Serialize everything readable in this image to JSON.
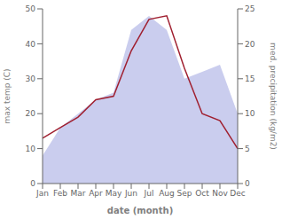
{
  "chart_data": {
    "type": "line",
    "categories": [
      "Jan",
      "Feb",
      "Mar",
      "Apr",
      "May",
      "Jun",
      "Jul",
      "Aug",
      "Sep",
      "Oct",
      "Nov",
      "Dec"
    ],
    "xlabel": "date (month)",
    "ylabel": "max temp (C)",
    "y2label": "med. precipitation (kg/m2)",
    "ylim": [
      0,
      50
    ],
    "yticks": [
      0,
      10,
      20,
      30,
      40,
      50
    ],
    "y2lim": [
      0,
      25
    ],
    "y2ticks": [
      0,
      5,
      10,
      15,
      20,
      25
    ],
    "grid": false,
    "series": [
      {
        "type": "area",
        "color": "#b8bce8",
        "axis": "y2",
        "values": [
          4,
          8,
          10,
          12,
          13,
          22,
          24,
          22,
          15,
          16,
          17,
          10
        ]
      },
      {
        "type": "line",
        "color": "#a02030",
        "values": [
          13,
          16,
          19,
          24,
          25,
          38,
          47,
          48,
          33,
          20,
          18,
          10
        ]
      }
    ]
  }
}
